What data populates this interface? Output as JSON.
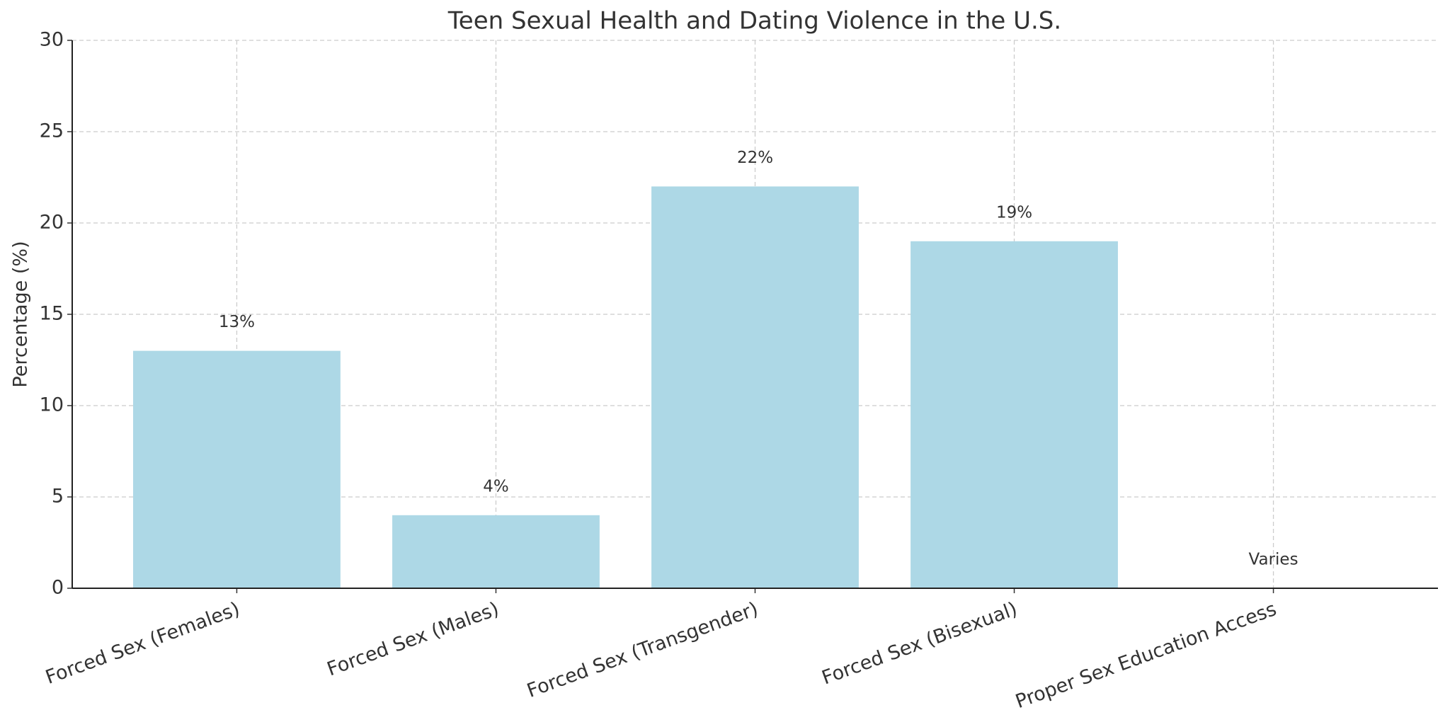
{
  "chart_data": {
    "type": "bar",
    "title": "Teen Sexual Health and Dating Violence in the U.S.",
    "y_label": "Percentage (%)",
    "categories": [
      "Forced Sex (Females)",
      "Forced Sex (Males)",
      "Forced Sex (Transgender)",
      "Forced Sex (Bisexual)",
      "Proper Sex Education Access"
    ],
    "values": [
      13,
      4,
      22,
      19,
      null
    ],
    "value_labels": [
      "13%",
      "4%",
      "22%",
      "19%",
      "Varies"
    ],
    "color": "#add8e6",
    "ylim": [
      0,
      30
    ],
    "yticks": [
      0,
      5,
      10,
      15,
      20,
      25,
      30
    ],
    "grid": true
  }
}
